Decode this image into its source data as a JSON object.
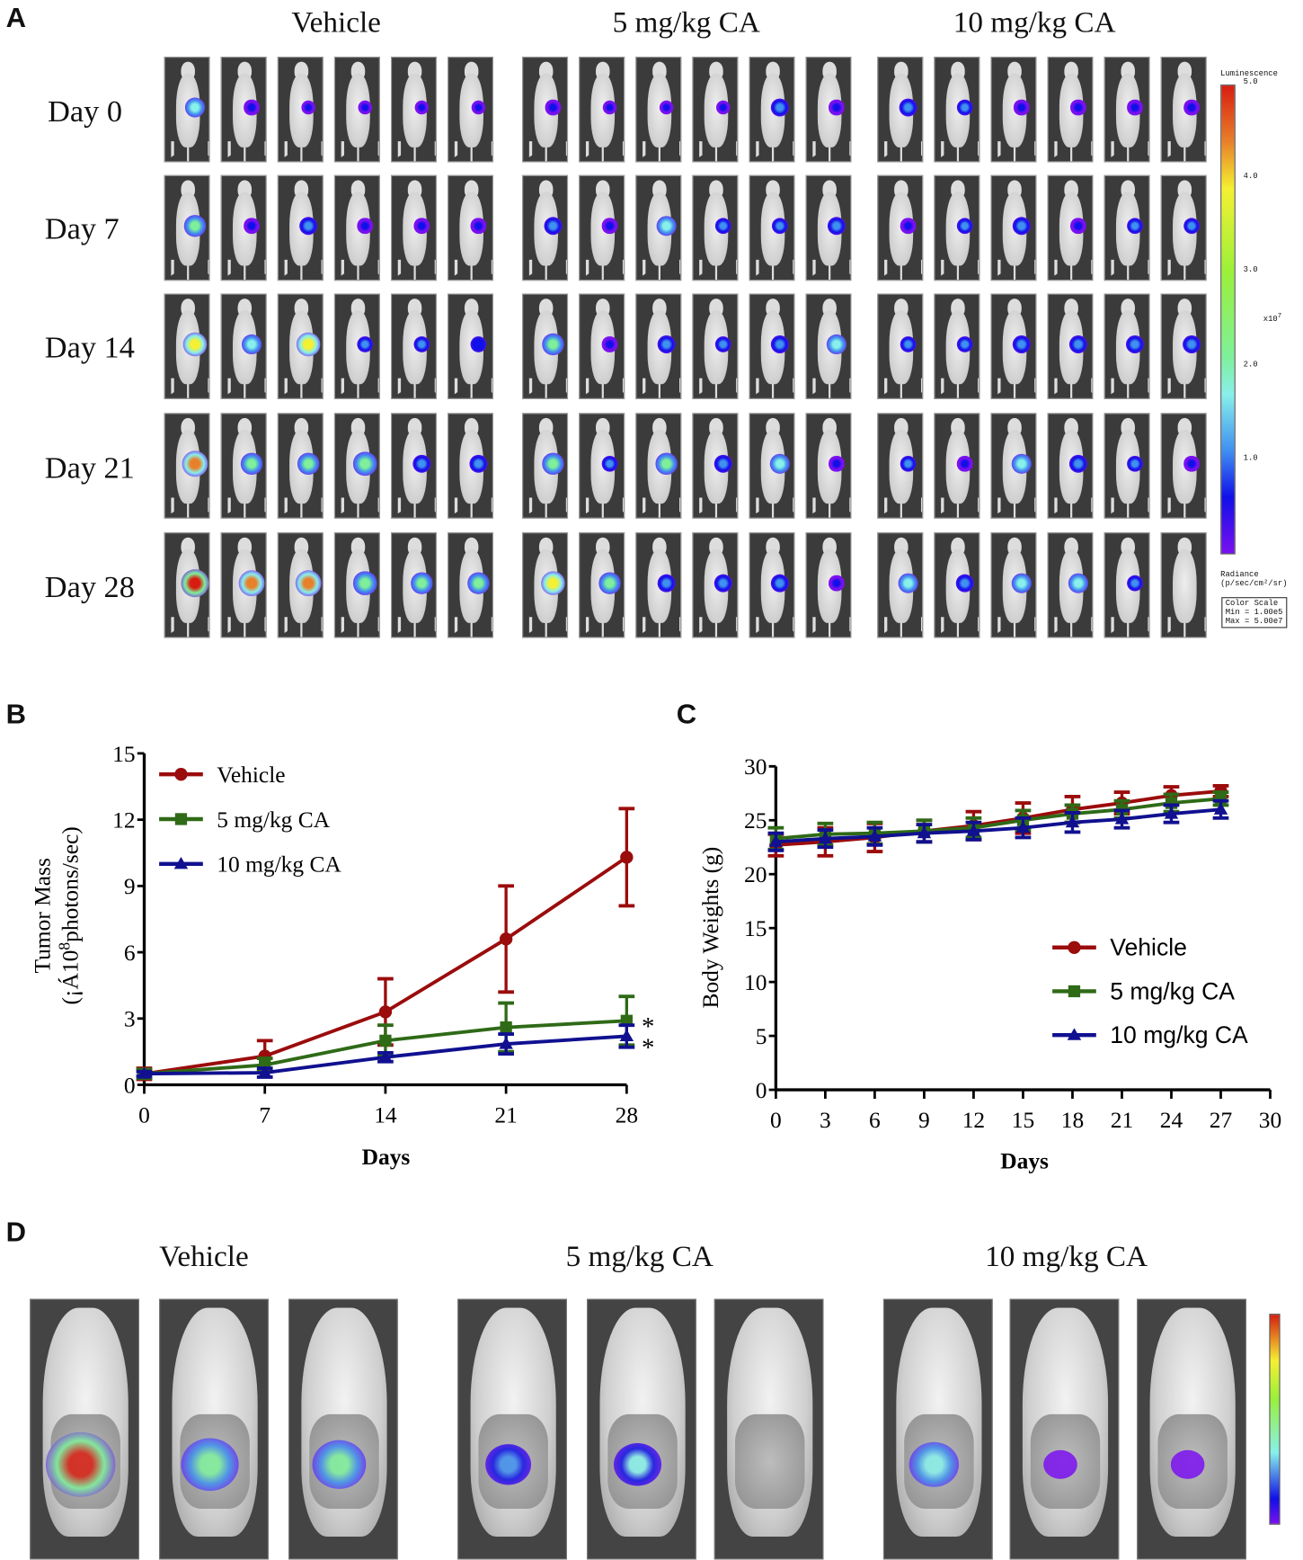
{
  "panel_letters": {
    "a": "A",
    "b": "B",
    "c": "C",
    "d": "D"
  },
  "panel_a": {
    "group_titles": [
      "Vehicle",
      "5 mg/kg CA",
      "10 mg/kg CA"
    ],
    "row_labels": [
      "Day 0",
      "Day 7",
      "Day 14",
      "Day 21",
      "Day 28"
    ],
    "signal_levels_0to1": [
      [
        [
          0.5,
          0.2,
          0.15,
          0.15,
          0.15,
          0.15
        ],
        [
          0.2,
          0.15,
          0.15,
          0.15,
          0.4,
          0.2
        ],
        [
          0.4,
          0.3,
          0.2,
          0.2,
          0.2,
          0.2
        ]
      ],
      [
        [
          0.6,
          0.2,
          0.4,
          0.2,
          0.2,
          0.2
        ],
        [
          0.4,
          0.2,
          0.5,
          0.3,
          0.3,
          0.4
        ],
        [
          0.2,
          0.3,
          0.4,
          0.2,
          0.3,
          0.3
        ]
      ],
      [
        [
          0.8,
          0.5,
          0.8,
          0.3,
          0.3,
          0.25
        ],
        [
          0.6,
          0.2,
          0.4,
          0.3,
          0.4,
          0.5
        ],
        [
          0.3,
          0.3,
          0.4,
          0.4,
          0.4,
          0.4
        ]
      ],
      [
        [
          0.9,
          0.6,
          0.6,
          0.7,
          0.4,
          0.4
        ],
        [
          0.6,
          0.3,
          0.6,
          0.4,
          0.5,
          0.2
        ],
        [
          0.3,
          0.2,
          0.5,
          0.4,
          0.3,
          0.2
        ]
      ],
      [
        [
          1.0,
          0.9,
          0.9,
          0.7,
          0.6,
          0.6
        ],
        [
          0.8,
          0.6,
          0.4,
          0.4,
          0.4,
          0.2
        ],
        [
          0.5,
          0.4,
          0.5,
          0.5,
          0.3,
          0.0
        ]
      ]
    ],
    "colorbar": {
      "title": "Luminescence",
      "ticks": [
        "5.0",
        "4.0",
        "3.0",
        "2.0",
        "1.0"
      ],
      "multiplier": "x10",
      "multiplier_exp": "7",
      "unit_line1": "Radiance",
      "unit_line2": "(p/sec/cm²/sr)",
      "scale_title": "Color Scale",
      "min": "Min = 1.00e5",
      "max": "Max = 5.00e7"
    }
  },
  "panel_d": {
    "group_titles": [
      "Vehicle",
      "5 mg/kg CA",
      "10 mg/kg CA"
    ],
    "signal_levels_0to1": [
      [
        1.0,
        0.7,
        0.6
      ],
      [
        0.4,
        0.45,
        0.0
      ],
      [
        0.5,
        0.1,
        0.1
      ]
    ]
  },
  "colors": {
    "vehicle": "#9b0c0c",
    "ca5": "#2f6a17",
    "ca10": "#101090"
  },
  "chart_data": [
    {
      "type": "line",
      "title": "",
      "xlabel": "Days",
      "ylabel_line1": "Tumor Mass",
      "ylabel_line2_pre": "(¡Á10",
      "ylabel_line2_sup": "8",
      "ylabel_line2_post": "photons/sec)",
      "x": [
        0,
        7,
        14,
        21,
        28
      ],
      "xticks": [
        "0",
        "7",
        "14",
        "21",
        "28"
      ],
      "yticks": [
        "0",
        "3",
        "6",
        "9",
        "12",
        "15"
      ],
      "xlim": [
        0,
        28
      ],
      "ylim": [
        0,
        15
      ],
      "legend": "top-left",
      "significance_marks": [
        "*",
        "*"
      ],
      "series": [
        {
          "name": "Vehicle",
          "marker": "circle",
          "values": [
            0.5,
            1.3,
            3.3,
            6.6,
            10.3
          ],
          "error": [
            0.25,
            0.7,
            1.5,
            2.4,
            2.2
          ]
        },
        {
          "name": "5 mg/kg CA",
          "marker": "square",
          "values": [
            0.5,
            0.9,
            2.0,
            2.6,
            2.9
          ],
          "error": [
            0.2,
            0.3,
            0.7,
            1.1,
            1.1
          ]
        },
        {
          "name": "10 mg/kg CA",
          "marker": "triangle",
          "values": [
            0.5,
            0.55,
            1.25,
            1.85,
            2.2
          ],
          "error": [
            0.1,
            0.2,
            0.2,
            0.45,
            0.5
          ]
        }
      ]
    },
    {
      "type": "line",
      "title": "",
      "xlabel": "Days",
      "ylabel": "Body Weights (g)",
      "x": [
        0,
        3,
        6,
        9,
        12,
        15,
        18,
        21,
        24,
        27
      ],
      "xticks": [
        "0",
        "3",
        "6",
        "9",
        "12",
        "15",
        "18",
        "21",
        "24",
        "27",
        "30"
      ],
      "yticks": [
        "0",
        "5",
        "10",
        "15",
        "20",
        "25",
        "30"
      ],
      "xlim": [
        0,
        30
      ],
      "ylim": [
        0,
        30
      ],
      "legend": "right",
      "series": [
        {
          "name": "Vehicle",
          "marker": "circle",
          "values": [
            22.7,
            23.0,
            23.4,
            24.0,
            24.5,
            25.2,
            26.0,
            26.6,
            27.3,
            27.7
          ],
          "error": [
            1.0,
            1.3,
            1.3,
            1.0,
            1.3,
            1.4,
            1.2,
            1.0,
            0.8,
            0.5
          ]
        },
        {
          "name": "5 mg/kg CA",
          "marker": "square",
          "values": [
            23.3,
            23.7,
            23.8,
            24.0,
            24.3,
            25.0,
            25.6,
            26.0,
            26.6,
            27.0
          ],
          "error": [
            1.0,
            1.0,
            1.0,
            1.0,
            0.9,
            0.9,
            0.8,
            0.8,
            0.8,
            0.6
          ]
        },
        {
          "name": "10 mg/kg CA",
          "marker": "triangle",
          "values": [
            23.0,
            23.3,
            23.5,
            23.8,
            24.0,
            24.3,
            24.8,
            25.1,
            25.6,
            26.0
          ],
          "error": [
            0.8,
            0.8,
            0.8,
            0.8,
            0.8,
            0.9,
            0.9,
            0.8,
            0.8,
            0.8
          ]
        }
      ]
    }
  ]
}
